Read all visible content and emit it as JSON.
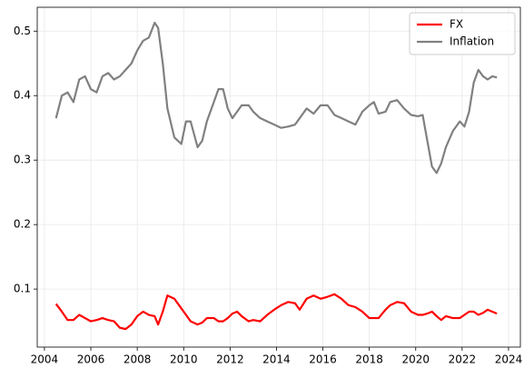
{
  "chart_data": {
    "type": "line",
    "x": [
      2004.5,
      2004.75,
      2005,
      2005.25,
      2005.5,
      2005.75,
      2006,
      2006.25,
      2006.5,
      2006.75,
      2007,
      2007.25,
      2007.5,
      2007.75,
      2008,
      2008.25,
      2008.5,
      2008.75,
      2008.9,
      2009.1,
      2009.3,
      2009.6,
      2009.9,
      2010.1,
      2010.3,
      2010.6,
      2010.8,
      2011,
      2011.3,
      2011.5,
      2011.7,
      2011.9,
      2012.1,
      2012.3,
      2012.5,
      2012.8,
      2013,
      2013.3,
      2013.6,
      2013.9,
      2014.2,
      2014.5,
      2014.8,
      2015,
      2015.3,
      2015.6,
      2015.9,
      2016.2,
      2016.5,
      2016.8,
      2017.1,
      2017.4,
      2017.7,
      2018,
      2018.2,
      2018.4,
      2018.7,
      2018.9,
      2019.2,
      2019.5,
      2019.8,
      2020.1,
      2020.3,
      2020.5,
      2020.7,
      2020.9,
      2021.1,
      2021.3,
      2021.6,
      2021.9,
      2022.1,
      2022.3,
      2022.5,
      2022.7,
      2022.9,
      2023.1,
      2023.3,
      2023.5
    ],
    "series": [
      {
        "name": "FX",
        "color": "#ff0000",
        "values": [
          0.077,
          0.065,
          0.052,
          0.052,
          0.06,
          0.055,
          0.05,
          0.052,
          0.055,
          0.052,
          0.05,
          0.04,
          0.038,
          0.045,
          0.058,
          0.065,
          0.06,
          0.058,
          0.045,
          0.065,
          0.09,
          0.085,
          0.07,
          0.06,
          0.05,
          0.045,
          0.048,
          0.055,
          0.055,
          0.05,
          0.05,
          0.055,
          0.062,
          0.065,
          0.058,
          0.05,
          0.052,
          0.05,
          0.06,
          0.068,
          0.075,
          0.08,
          0.078,
          0.068,
          0.085,
          0.09,
          0.085,
          0.088,
          0.092,
          0.085,
          0.075,
          0.072,
          0.065,
          0.055,
          0.055,
          0.055,
          0.068,
          0.075,
          0.08,
          0.078,
          0.065,
          0.06,
          0.06,
          0.062,
          0.065,
          0.058,
          0.052,
          0.058,
          0.055,
          0.055,
          0.06,
          0.065,
          0.065,
          0.06,
          0.063,
          0.068,
          0.065,
          0.062
        ]
      },
      {
        "name": "Inflation",
        "color": "#808080",
        "values": [
          0.365,
          0.4,
          0.405,
          0.39,
          0.425,
          0.43,
          0.41,
          0.405,
          0.43,
          0.435,
          0.425,
          0.43,
          0.44,
          0.45,
          0.47,
          0.485,
          0.49,
          0.513,
          0.505,
          0.45,
          0.38,
          0.335,
          0.325,
          0.36,
          0.36,
          0.32,
          0.33,
          0.36,
          0.39,
          0.41,
          0.41,
          0.38,
          0.365,
          0.375,
          0.385,
          0.385,
          0.375,
          0.365,
          0.36,
          0.355,
          0.35,
          0.352,
          0.355,
          0.365,
          0.38,
          0.372,
          0.385,
          0.385,
          0.37,
          0.365,
          0.36,
          0.355,
          0.375,
          0.385,
          0.39,
          0.372,
          0.375,
          0.39,
          0.393,
          0.38,
          0.37,
          0.368,
          0.37,
          0.33,
          0.29,
          0.28,
          0.295,
          0.32,
          0.345,
          0.36,
          0.352,
          0.375,
          0.42,
          0.44,
          0.43,
          0.425,
          0.43,
          0.428
        ]
      }
    ],
    "xlim": [
      2003.69,
      2024.51
    ],
    "ylim": [
      0.01,
      0.537
    ],
    "xticks": [
      2004,
      2006,
      2008,
      2010,
      2012,
      2014,
      2016,
      2018,
      2020,
      2022,
      2024
    ],
    "yticks": [
      0.1,
      0.2,
      0.3,
      0.4,
      0.5
    ],
    "grid": true,
    "legend": "upper right"
  }
}
